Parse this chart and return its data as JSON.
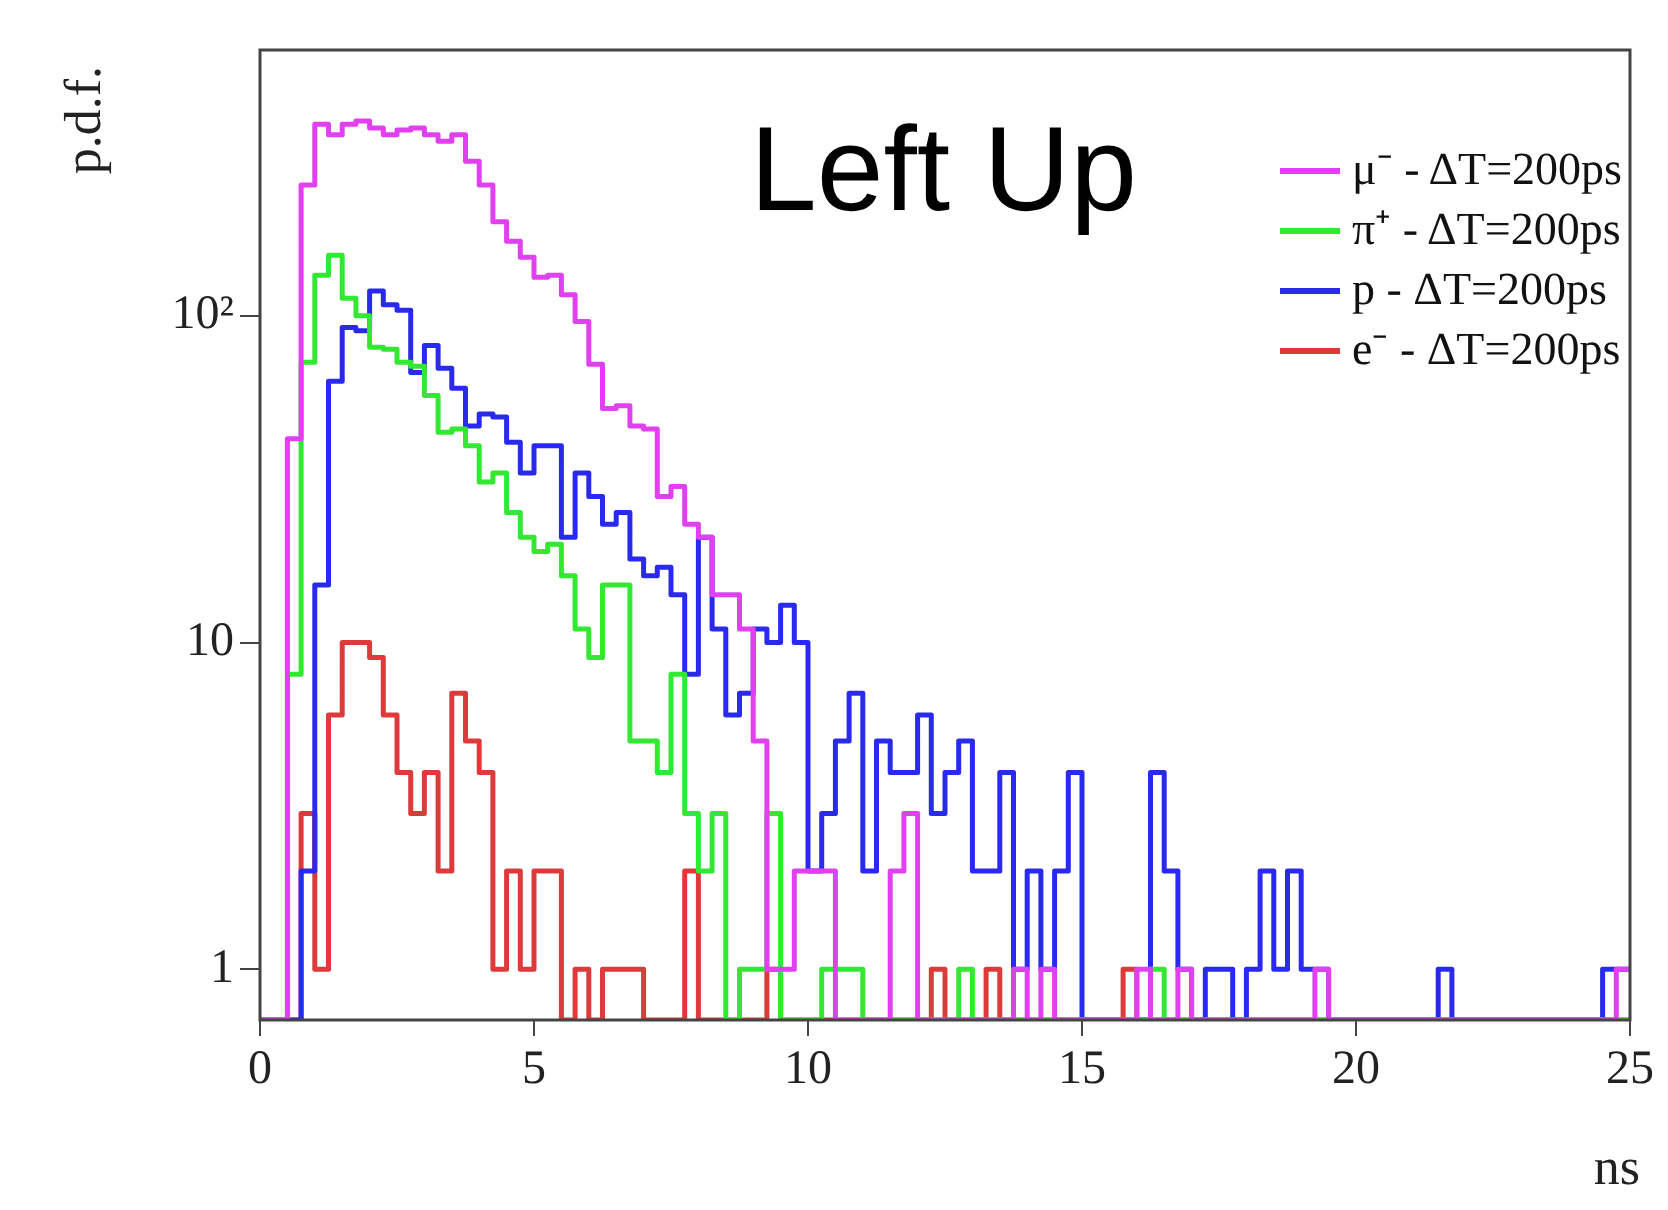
{
  "chart_data": {
    "type": "histogram",
    "xlabel": "ns",
    "ylabel": "p.d.f.",
    "annotations": [
      "Left Up"
    ],
    "bins": [
      0,
      0.25,
      0.5,
      0.75,
      1,
      1.25,
      1.5,
      1.75,
      2,
      2.25,
      2.5,
      2.75,
      3,
      3.25,
      3.5,
      3.75,
      4,
      4.25,
      4.5,
      4.75,
      5,
      5.25,
      5.5,
      5.75,
      6,
      6.25,
      6.5,
      6.75,
      7,
      7.25,
      7.5,
      7.75,
      8,
      8.25,
      8.5,
      8.75,
      9,
      9.25,
      9.5,
      9.75,
      10,
      10.25,
      10.5,
      10.75,
      11,
      11.25,
      11.5,
      11.75,
      12,
      12.25,
      12.5,
      12.75,
      13,
      13.25,
      13.5,
      13.75,
      14,
      14.25,
      14.5,
      14.75,
      15,
      15.25,
      15.5,
      15.75,
      16,
      16.25,
      16.5,
      16.75,
      17,
      17.25,
      17.5,
      17.75,
      18,
      18.25,
      18.5,
      18.75,
      19,
      19.25,
      19.5,
      19.75,
      20,
      20.25,
      20.5,
      20.75,
      21,
      21.25,
      21.5,
      21.75,
      22,
      22.25,
      22.5,
      22.75,
      23,
      23.25,
      23.5,
      23.75,
      24,
      24.25,
      24.5,
      24.75,
      25
    ],
    "series": [
      {
        "name": "μ⁻ - ΔT=200ps",
        "color": "#e040f0",
        "values": [
          null,
          null,
          42,
          251,
          385,
          358,
          385,
          394,
          375,
          358,
          370,
          375,
          358,
          342,
          358,
          297,
          251,
          194,
          169,
          151,
          131,
          133,
          116,
          96,
          71,
          52,
          53,
          46,
          45,
          28,
          30,
          23,
          21,
          14,
          14,
          11,
          5,
          1,
          1,
          2,
          2,
          2,
          null,
          null,
          null,
          null,
          2,
          3,
          null,
          null,
          null,
          null,
          null,
          null,
          null,
          1,
          null,
          1,
          null,
          null,
          null,
          null,
          null,
          null,
          1,
          null,
          null,
          1,
          null,
          null,
          null,
          null,
          null,
          null,
          null,
          null,
          null,
          1,
          null,
          null,
          null,
          null,
          null,
          null,
          null,
          null,
          null,
          null,
          null,
          null,
          null,
          null,
          null,
          null,
          null,
          null,
          null,
          null,
          null,
          1
        ]
      },
      {
        "name": "π⁺ - ΔT=200ps",
        "color": "#33e833",
        "values": [
          null,
          null,
          8,
          72,
          133,
          153,
          113,
          100,
          80,
          79,
          72,
          70,
          57,
          44,
          45,
          40,
          31,
          33,
          25,
          21,
          19,
          20,
          16,
          11,
          9,
          15,
          15,
          5,
          5,
          4,
          8,
          3,
          2,
          3,
          null,
          1,
          1,
          3,
          null,
          null,
          null,
          1,
          1,
          1,
          null,
          null,
          null,
          null,
          null,
          null,
          null,
          1,
          null,
          null,
          null,
          null,
          null,
          null,
          null,
          null,
          null,
          null,
          null,
          null,
          null,
          1,
          null,
          null,
          null,
          null,
          null,
          null,
          null,
          null,
          null,
          null,
          null,
          null,
          null,
          null,
          null,
          null,
          null,
          null,
          null,
          null,
          null,
          null,
          null,
          null,
          null,
          null,
          null,
          null,
          null,
          null,
          null,
          null,
          null,
          null
        ]
      },
      {
        "name": "p - ΔT=200ps",
        "color": "#2a2aee",
        "values": [
          null,
          null,
          null,
          2,
          15,
          63,
          92,
          90,
          119,
          108,
          104,
          67,
          81,
          69,
          60,
          46,
          50,
          49,
          41,
          33,
          40,
          40,
          21,
          33,
          28,
          23,
          25,
          18,
          16,
          17,
          14,
          8,
          21,
          11,
          6,
          7,
          11,
          10,
          13,
          10,
          2,
          3,
          5,
          7,
          2,
          5,
          4,
          4,
          6,
          3,
          4,
          5,
          2,
          2,
          4,
          1,
          2,
          1,
          2,
          4,
          null,
          null,
          null,
          null,
          null,
          4,
          2,
          1,
          null,
          1,
          1,
          null,
          1,
          2,
          1,
          2,
          1,
          1,
          null,
          null,
          null,
          null,
          null,
          null,
          null,
          null,
          1,
          null,
          null,
          null,
          null,
          null,
          null,
          null,
          null,
          null,
          null,
          null,
          1,
          1
        ]
      },
      {
        "name": "e⁻ - ΔT=200ps",
        "color": "#dd3b3b",
        "values": [
          null,
          null,
          null,
          3,
          1,
          6,
          10,
          10,
          9,
          6,
          4,
          3,
          4,
          2,
          7,
          5,
          4,
          1,
          2,
          1,
          2,
          2,
          null,
          1,
          null,
          1,
          1,
          1,
          null,
          null,
          null,
          2,
          null,
          null,
          null,
          null,
          null,
          1,
          null,
          null,
          null,
          null,
          null,
          null,
          null,
          null,
          null,
          null,
          null,
          1,
          null,
          null,
          null,
          1,
          null,
          null,
          null,
          null,
          null,
          null,
          null,
          null,
          null,
          1,
          null,
          null,
          null,
          null,
          null,
          null,
          null,
          null,
          null,
          null,
          null,
          null,
          null,
          null,
          null,
          null,
          null,
          null,
          null,
          null,
          null,
          null,
          null,
          null,
          null,
          null,
          null,
          null,
          null,
          null,
          null,
          null,
          null,
          null,
          null,
          null
        ]
      }
    ],
    "xlim": [
      0,
      25
    ],
    "xticks": [
      0,
      5,
      10,
      15,
      20,
      25
    ],
    "ylim": [
      0.7,
      650
    ],
    "yticks": [
      1,
      10,
      {
        "value": 100,
        "label": "10²"
      }
    ],
    "log": true,
    "grid": false,
    "legend": "top right"
  }
}
